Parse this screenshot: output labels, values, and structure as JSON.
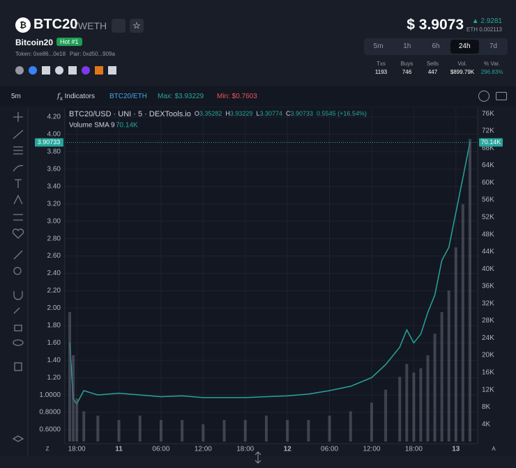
{
  "header": {
    "symbol": "BTC20",
    "pair": "/WETH",
    "name": "Bitcoin20",
    "badge": "Hot #1",
    "token": "Token: 0xe86...0e18",
    "pair_address": "Pair: 0xd50...909a",
    "price": "$ 3.9073",
    "change": "2.9281",
    "price_eth": "ETH 0.002113"
  },
  "timeframes": [
    "5m",
    "1h",
    "6h",
    "24h",
    "7d"
  ],
  "active_timeframe": 3,
  "stats": [
    {
      "label": "Txs",
      "value": "1193"
    },
    {
      "label": "Buys",
      "value": "746"
    },
    {
      "label": "Sells",
      "value": "447"
    },
    {
      "label": "Vol.",
      "value": "$899.79K"
    },
    {
      "label": "% Var.",
      "value": "296.83%"
    }
  ],
  "toolbar": {
    "interval": "5m",
    "indicators": "Indicators",
    "pair": "BTC20/ETH",
    "max": "Max: $3.93229",
    "min": "Min: $0.7603"
  },
  "chart_data": {
    "type": "line",
    "legend_title": "BTC20/USD · UNI · 5 · DEXTools.io",
    "ohlc": [
      {
        "key": "O",
        "value": "3.35282"
      },
      {
        "key": "H",
        "value": "3.93229"
      },
      {
        "key": "L",
        "value": "3.30774"
      },
      {
        "key": "C",
        "value": "3.90733"
      }
    ],
    "change": "0.5545 (+16.54%)",
    "volume_label": "Volume SMA 9",
    "volume_value": "70.14K",
    "last_price": {
      "value": 3.90733,
      "label": "3.90733"
    },
    "last_volume": {
      "value": 70140,
      "label": "70.14K"
    },
    "axis_corners": [
      "Z",
      "A"
    ],
    "x": [
      -1,
      -0.5,
      0,
      1,
      3,
      6,
      9,
      12,
      15,
      18,
      21,
      24,
      27,
      30,
      33,
      36,
      39,
      42,
      44,
      46,
      47,
      48,
      49,
      50,
      51,
      52,
      53,
      54,
      55,
      56
    ],
    "xlim": [
      -1.7,
      57.1
    ],
    "xticks": [
      {
        "value": 0,
        "label": "18:00"
      },
      {
        "value": 6,
        "label": "11"
      },
      {
        "value": 12,
        "label": "06:00"
      },
      {
        "value": 18,
        "label": "12:00"
      },
      {
        "value": 24,
        "label": "18:00"
      },
      {
        "value": 30,
        "label": "12"
      },
      {
        "value": 36,
        "label": "06:00"
      },
      {
        "value": 42,
        "label": "12:00"
      },
      {
        "value": 48,
        "label": "18:00"
      },
      {
        "value": 54,
        "label": "13"
      }
    ],
    "series": [
      {
        "name": "BTC20/USD",
        "color": "#26a69a",
        "values": [
          1.6,
          0.95,
          0.9,
          1.05,
          1.0,
          1.02,
          1.0,
          0.98,
          0.99,
          0.97,
          0.97,
          0.97,
          0.98,
          0.99,
          1.01,
          1.05,
          1.1,
          1.2,
          1.35,
          1.55,
          1.75,
          1.6,
          1.7,
          1.95,
          2.15,
          2.55,
          2.7,
          3.1,
          3.5,
          3.90733
        ]
      },
      {
        "name": "Volume",
        "color": "#5b6070",
        "axis": "y2",
        "values": [
          30000,
          20000,
          10000,
          7000,
          6000,
          5000,
          6000,
          5000,
          5000,
          4000,
          5000,
          5000,
          6000,
          5000,
          5000,
          6000,
          7000,
          9000,
          12000,
          15000,
          18000,
          16000,
          17000,
          20000,
          25000,
          30000,
          35000,
          45000,
          55000,
          70140
        ]
      }
    ],
    "ylim": [
      0.464,
      4.288
    ],
    "yticks": [
      {
        "value": 0.6,
        "label": "0.6000"
      },
      {
        "value": 0.8,
        "label": "0.8000"
      },
      {
        "value": 1,
        "label": "1.0000"
      },
      {
        "value": 1.2,
        "label": "1.20"
      },
      {
        "value": 1.4,
        "label": "1.40"
      },
      {
        "value": 1.6,
        "label": "1.60"
      },
      {
        "value": 1.8,
        "label": "1.80"
      },
      {
        "value": 2,
        "label": "2.00"
      },
      {
        "value": 2.2,
        "label": "2.20"
      },
      {
        "value": 2.4,
        "label": "2.40"
      },
      {
        "value": 2.6,
        "label": "2.60"
      },
      {
        "value": 2.8,
        "label": "2.80"
      },
      {
        "value": 3,
        "label": "3.00"
      },
      {
        "value": 3.2,
        "label": "3.20"
      },
      {
        "value": 3.4,
        "label": "3.40"
      },
      {
        "value": 3.6,
        "label": "3.60"
      },
      {
        "value": 3.8,
        "label": "3.80"
      },
      {
        "value": 4,
        "label": "4.00"
      },
      {
        "value": 4.2,
        "label": "4.20"
      }
    ],
    "y2lim": [
      0,
      77000
    ],
    "y2ticks": [
      {
        "value": 4000,
        "label": "4K"
      },
      {
        "value": 8000,
        "label": "8K"
      },
      {
        "value": 12000,
        "label": "12K"
      },
      {
        "value": 16000,
        "label": "16K"
      },
      {
        "value": 20000,
        "label": "20K"
      },
      {
        "value": 24000,
        "label": "24K"
      },
      {
        "value": 28000,
        "label": "28K"
      },
      {
        "value": 32000,
        "label": "32K"
      },
      {
        "value": 36000,
        "label": "36K"
      },
      {
        "value": 40000,
        "label": "40K"
      },
      {
        "value": 44000,
        "label": "44K"
      },
      {
        "value": 48000,
        "label": "48K"
      },
      {
        "value": 52000,
        "label": "52K"
      },
      {
        "value": 56000,
        "label": "56K"
      },
      {
        "value": 60000,
        "label": "60K"
      },
      {
        "value": 64000,
        "label": "64K"
      },
      {
        "value": 68000,
        "label": "68K"
      },
      {
        "value": 72000,
        "label": "72K"
      },
      {
        "value": 76000,
        "label": "76K"
      }
    ],
    "grid": true
  }
}
